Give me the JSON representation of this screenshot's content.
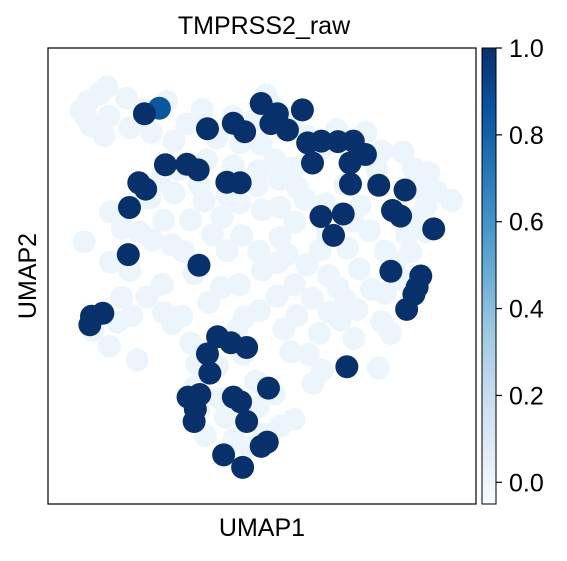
{
  "chart_data": {
    "type": "scatter",
    "title": "TMPRSS2_raw",
    "xlabel": "UMAP1",
    "ylabel": "UMAP2",
    "xlim": [
      0,
      100
    ],
    "ylim": [
      0,
      100
    ],
    "colorbar": {
      "colormap": "Blues",
      "range": [
        -0.05,
        1.0
      ],
      "ticks": [
        0.0,
        0.2,
        0.4,
        0.6,
        0.8,
        1.0
      ],
      "tick_labels": [
        "0.0",
        "0.2",
        "0.4",
        "0.6",
        "0.8",
        "1.0"
      ]
    },
    "grid": false,
    "points": [
      [
        5.2,
        88.6,
        0
      ],
      [
        6.9,
        90.8,
        0
      ],
      [
        9.8,
        92.6,
        0
      ],
      [
        11.6,
        94.2,
        0
      ],
      [
        7.6,
        85.1,
        0
      ],
      [
        12.1,
        87.3,
        0
      ],
      [
        16.5,
        91.5,
        0
      ],
      [
        20.7,
        89.0,
        0
      ],
      [
        22.6,
        83.6,
        0
      ],
      [
        26.4,
        90.8,
        0
      ],
      [
        10.9,
        82.8,
        0
      ],
      [
        6.5,
        87.1,
        0
      ],
      [
        17.3,
        84.6,
        0
      ],
      [
        28.2,
        81.5,
        0
      ],
      [
        31.4,
        85.5,
        0
      ],
      [
        35.2,
        88.9,
        0
      ],
      [
        38.8,
        82.2,
        0
      ],
      [
        42.8,
        87.3,
        0
      ],
      [
        47.2,
        86.0,
        0
      ],
      [
        51.0,
        92.3,
        0
      ],
      [
        53.4,
        89.2,
        0
      ],
      [
        57.5,
        87.1,
        0
      ],
      [
        49.8,
        80.8,
        0
      ],
      [
        44.7,
        81.1,
        0
      ],
      [
        36.2,
        77.1,
        0
      ],
      [
        42.9,
        75.8,
        0
      ],
      [
        49.1,
        74.6,
        0
      ],
      [
        53.2,
        77.1,
        0
      ],
      [
        57.8,
        75.3,
        0
      ],
      [
        60.8,
        82.9,
        0
      ],
      [
        64.6,
        79.6,
        0
      ],
      [
        68.5,
        84.2,
        0
      ],
      [
        72.1,
        79.4,
        0
      ],
      [
        75.7,
        83.5,
        0
      ],
      [
        79.6,
        79.2,
        0
      ],
      [
        78.4,
        74.9,
        0
      ],
      [
        84.9,
        78.9,
        0
      ],
      [
        87.5,
        75.1,
        0
      ],
      [
        91.3,
        74.1,
        0
      ],
      [
        93.2,
        69.8,
        0
      ],
      [
        96.9,
        67.6,
        0
      ],
      [
        90.6,
        66.3,
        0
      ],
      [
        87.2,
        63.5,
        0
      ],
      [
        85.8,
        59.5,
        0
      ],
      [
        86.8,
        55.6,
        0
      ],
      [
        83.2,
        53.1,
        0
      ],
      [
        85.1,
        48.9,
        0
      ],
      [
        80.6,
        46.0,
        0
      ],
      [
        77.1,
        46.9,
        0
      ],
      [
        74.1,
        51.6,
        0
      ],
      [
        70.6,
        44.5,
        0
      ],
      [
        66.5,
        50.1,
        0
      ],
      [
        71.2,
        56.5,
        0
      ],
      [
        76.6,
        60.6,
        0
      ],
      [
        72.4,
        62.8,
        0
      ],
      [
        66.2,
        60.1,
        0
      ],
      [
        64.4,
        56.1,
        0
      ],
      [
        61.1,
        52.6,
        0
      ],
      [
        58.1,
        47.9,
        0
      ],
      [
        62.4,
        44.8,
        0
      ],
      [
        66.6,
        41.6,
        0
      ],
      [
        64.2,
        36.6,
        0
      ],
      [
        61.5,
        31.7,
        0
      ],
      [
        64.9,
        28.0,
        0
      ],
      [
        72.8,
        35.4,
        0
      ],
      [
        78.8,
        28.5,
        0
      ],
      [
        81.8,
        36.6,
        0
      ],
      [
        69.4,
        39.7,
        0
      ],
      [
        58.6,
        40.7,
        0
      ],
      [
        53.8,
        45.3,
        0
      ],
      [
        49.3,
        41.9,
        0
      ],
      [
        44.4,
        48.0,
        0
      ],
      [
        45.5,
        40.3,
        0
      ],
      [
        43.8,
        37.4,
        0
      ],
      [
        39.9,
        47.3,
        0
      ],
      [
        36.8,
        43.8,
        0
      ],
      [
        41.4,
        55.9,
        0
      ],
      [
        45.0,
        59.5,
        0
      ],
      [
        49.2,
        55.8,
        0
      ],
      [
        54.5,
        59.0,
        0
      ],
      [
        58.1,
        62.6,
        0
      ],
      [
        60.7,
        67.9,
        0
      ],
      [
        54.4,
        66.1,
        0
      ],
      [
        50.0,
        65.5,
        0
      ],
      [
        44.4,
        67.1,
        0
      ],
      [
        40.1,
        63.8,
        0
      ],
      [
        35.7,
        67.5,
        0
      ],
      [
        32.3,
        63.1,
        0
      ],
      [
        25.6,
        63.0,
        0
      ],
      [
        19.5,
        67.9,
        0
      ],
      [
        24.8,
        72.2,
        0
      ],
      [
        29.5,
        74.9,
        0
      ],
      [
        34.4,
        71.4,
        0
      ],
      [
        30.6,
        55.7,
        0
      ],
      [
        25.3,
        48.0,
        0
      ],
      [
        17.3,
        51.3,
        0
      ],
      [
        12.5,
        53.2,
        0
      ],
      [
        15.3,
        45.0,
        0
      ],
      [
        17.8,
        40.7,
        0
      ],
      [
        14.2,
        39.2,
        0
      ],
      [
        21.5,
        45.1,
        0
      ],
      [
        25.6,
        41.4,
        0
      ],
      [
        30.1,
        40.6,
        0
      ],
      [
        32.4,
        34.4,
        0
      ],
      [
        39.0,
        29.0,
        0
      ],
      [
        33.8,
        29.4,
        0
      ],
      [
        45.3,
        31.7,
        0
      ],
      [
        48.4,
        25.4,
        0
      ],
      [
        53.1,
        22.4,
        0
      ],
      [
        49.1,
        19.4,
        0
      ],
      [
        54.4,
        14.9,
        0
      ],
      [
        57.9,
        16.5,
        0
      ],
      [
        50.4,
        13.1,
        0
      ],
      [
        46.8,
        10.0,
        0
      ],
      [
        43.1,
        11.9,
        0
      ],
      [
        40.9,
        17.0,
        0
      ],
      [
        39.7,
        21.3,
        0
      ],
      [
        34.4,
        18.7,
        0
      ],
      [
        33.4,
        24.0,
        0
      ],
      [
        36.0,
        12.7,
        0
      ],
      [
        79.6,
        39.3,
        0
      ],
      [
        73.5,
        42.2,
        0
      ],
      [
        22.9,
        58.4,
        0
      ],
      [
        27.7,
        57.3,
        0
      ],
      [
        12.5,
        65.0,
        0
      ],
      [
        6.0,
        58.0,
        0
      ],
      [
        19.6,
        60.3,
        0
      ],
      [
        15.4,
        61.1,
        0
      ],
      [
        90.6,
        60.4,
        0
      ],
      [
        88.7,
        70.6,
        0
      ],
      [
        8.1,
        37.3,
        0
      ],
      [
        12.2,
        33.6,
        0
      ],
      [
        19.1,
        30.4,
        0
      ],
      [
        27.8,
        38.9,
        0
      ],
      [
        55.4,
        37.6,
        0
      ],
      [
        57.1,
        32.3,
        0
      ],
      [
        62.6,
        24.9,
        0
      ],
      [
        58.8,
        70.6,
        0
      ],
      [
        70.5,
        71.3,
        0
      ],
      [
        65.7,
        66.9,
        0
      ],
      [
        41.3,
        69.0,
        0
      ],
      [
        48.8,
        71.1,
        0
      ],
      [
        28.2,
        69.4,
        0
      ],
      [
        37.8,
        59.7,
        0
      ],
      [
        33.2,
        50.5,
        0
      ],
      [
        50.1,
        51.4,
        0
      ],
      [
        53.8,
        53.1,
        0
      ],
      [
        56.2,
        55.0,
        0
      ],
      [
        68.8,
        47.2,
        0
      ],
      [
        80.5,
        55.8,
        0
      ],
      [
        22.3,
        68.2,
        0
      ],
      [
        54.3,
        72.6,
        0
      ],
      [
        74.3,
        66.4,
        0
      ],
      [
        20.9,
        87.9,
        1
      ],
      [
        24.6,
        89.2,
        0.85
      ],
      [
        36.5,
        84.4,
        1
      ],
      [
        42.9,
        85.7,
        1
      ],
      [
        45.7,
        83.7,
        1
      ],
      [
        49.8,
        90.3,
        1
      ],
      [
        52.2,
        85.6,
        1
      ],
      [
        56.3,
        84.1,
        1
      ],
      [
        53.8,
        87.9,
        1
      ],
      [
        60.0,
        88.8,
        1
      ],
      [
        61.3,
        81.1,
        1
      ],
      [
        64.7,
        81.5,
        1
      ],
      [
        68.8,
        81.4,
        1
      ],
      [
        72.6,
        81.5,
        1
      ],
      [
        75.6,
        78.4,
        1
      ],
      [
        71.8,
        76.4,
        1
      ],
      [
        71.9,
        71.5,
        1
      ],
      [
        62.5,
        76.4,
        1
      ],
      [
        26.1,
        76.0,
        1
      ],
      [
        31.4,
        76.1,
        1
      ],
      [
        34.2,
        74.8,
        1
      ],
      [
        41.3,
        71.9,
        1
      ],
      [
        44.6,
        71.8,
        1
      ],
      [
        19.5,
        71.8,
        1
      ],
      [
        21.2,
        70.3,
        1
      ],
      [
        17.2,
        66.0,
        1
      ],
      [
        16.9,
        55.0,
        1
      ],
      [
        34.4,
        52.5,
        1
      ],
      [
        64.6,
        63.9,
        1
      ],
      [
        70.1,
        64.5,
        1
      ],
      [
        67.7,
        59.5,
        1
      ],
      [
        78.9,
        71.2,
        1
      ],
      [
        82.3,
        65.3,
        1
      ],
      [
        84.3,
        64.0,
        1
      ],
      [
        85.4,
        70.1,
        1
      ],
      [
        92.5,
        61.0,
        1
      ],
      [
        89.3,
        50.0,
        1
      ],
      [
        81.9,
        51.1,
        1
      ],
      [
        88.4,
        47.4,
        1
      ],
      [
        87.6,
        45.7,
        1
      ],
      [
        85.8,
        42.2,
        1
      ],
      [
        7.8,
        40.6,
        1
      ],
      [
        7.4,
        38.6,
        1
      ],
      [
        10.6,
        41.3,
        1
      ],
      [
        39.0,
        35.8,
        1
      ],
      [
        42.3,
        34.4,
        1
      ],
      [
        46.2,
        33.3,
        1
      ],
      [
        36.5,
        31.8,
        1
      ],
      [
        37.1,
        27.3,
        1
      ],
      [
        51.6,
        23.8,
        1
      ],
      [
        71.0,
        28.8,
        1
      ],
      [
        31.7,
        21.7,
        1
      ],
      [
        34.6,
        22.3,
        1
      ],
      [
        33.5,
        18.9,
        1
      ],
      [
        33.2,
        16.0,
        1
      ],
      [
        44.7,
        20.6,
        1
      ],
      [
        42.9,
        21.7,
        1
      ],
      [
        46.2,
        16.0,
        1
      ],
      [
        40.5,
        8.2,
        1
      ],
      [
        49.8,
        10.2,
        1
      ],
      [
        51.3,
        11.2,
        1
      ],
      [
        45.2,
        5.3,
        1
      ]
    ]
  }
}
